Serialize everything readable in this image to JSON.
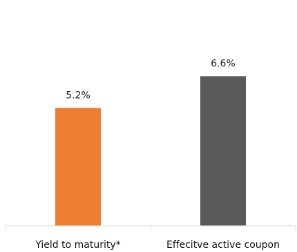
{
  "chart_data": {
    "type": "bar",
    "title": "",
    "xlabel": "",
    "ylabel": "",
    "categories": [
      "Yield to maturity*",
      "Effecitve active coupon"
    ],
    "values": [
      5.2,
      6.6
    ],
    "data_labels": [
      "5.2%",
      "6.6%"
    ],
    "colors": [
      "#ED7D31",
      "#595959"
    ],
    "ylim": [
      0,
      9.2
    ],
    "grid": false,
    "legend": "none"
  }
}
